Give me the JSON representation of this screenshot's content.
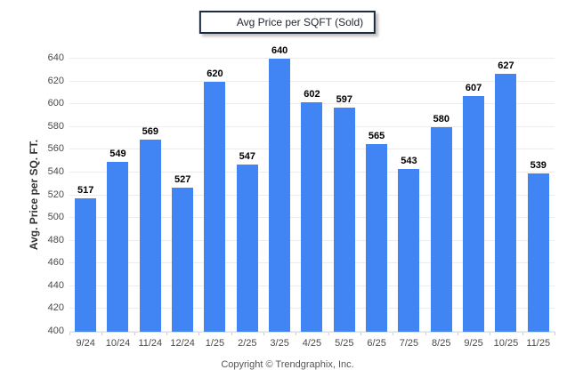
{
  "chart_data": {
    "type": "bar",
    "title": "",
    "legend_label": "Avg Price per SQFT (Sold)",
    "ylabel": "Avg. Price per SQ. FT.",
    "xlabel": "",
    "categories": [
      "9/24",
      "10/24",
      "11/24",
      "12/24",
      "1/25",
      "2/25",
      "3/25",
      "4/25",
      "5/25",
      "6/25",
      "7/25",
      "8/25",
      "9/25",
      "10/25",
      "11/25"
    ],
    "values": [
      517,
      549,
      569,
      527,
      620,
      547,
      640,
      602,
      597,
      565,
      543,
      580,
      607,
      627,
      539
    ],
    "ylim": [
      400,
      640
    ],
    "ytick_step": 20,
    "grid": "horizontal",
    "legend_position": "top-center",
    "bar_color": "#4184f3"
  },
  "colors": {
    "bar": "#4184f3",
    "legend_border": "#1b2a41",
    "gridline": "#ececec",
    "tick_label": "#4a4a4a",
    "value_label": "#000000"
  },
  "footer": {
    "copyright": "Copyright © Trendgraphix, Inc."
  }
}
